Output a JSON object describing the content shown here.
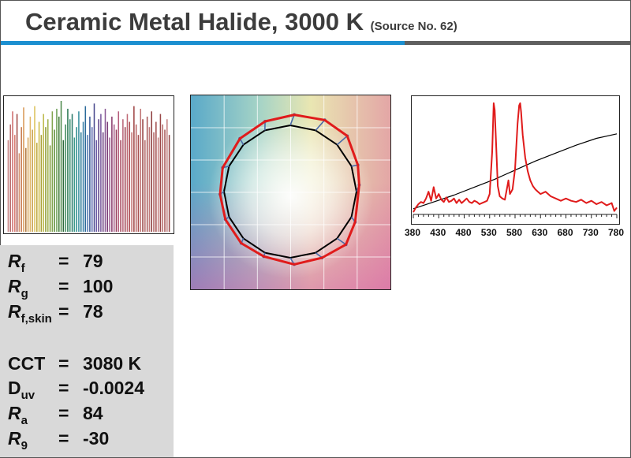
{
  "header": {
    "title": "Ceramic Metal Halide, 3000 K",
    "source_note": "(Source No. 62)",
    "accent_color": "#1b8fd0",
    "rule_dark_color": "#5f5f5f"
  },
  "metrics": [
    {
      "symbol": "R",
      "subscript": "f",
      "italic": true,
      "equals": "=",
      "value": "79"
    },
    {
      "symbol": "R",
      "subscript": "g",
      "italic": true,
      "equals": "=",
      "value": "100"
    },
    {
      "symbol": "R",
      "subscript": "f,skin",
      "italic": true,
      "equals": "=",
      "value": "78"
    },
    {
      "symbol": "CCT",
      "subscript": "",
      "italic": false,
      "equals": "=",
      "value": "3080 K"
    },
    {
      "symbol": "D",
      "subscript": "uv",
      "italic": false,
      "equals": "=",
      "value": "-0.0024"
    },
    {
      "symbol": "R",
      "subscript": "a",
      "italic": true,
      "equals": "=",
      "value": "84"
    },
    {
      "symbol": "R",
      "subscript": "9",
      "italic": true,
      "equals": "=",
      "value": "-30"
    }
  ],
  "chart_data": [
    {
      "type": "bar",
      "ylim": [
        0,
        100
      ],
      "values": [
        70,
        82,
        92,
        74,
        90,
        60,
        80,
        95,
        64,
        72,
        88,
        78,
        96,
        68,
        84,
        74,
        90,
        80,
        86,
        66,
        92,
        78,
        94,
        88,
        100,
        70,
        82,
        94,
        86,
        90,
        72,
        80,
        92,
        76,
        84,
        96,
        74,
        88,
        80,
        98,
        70,
        86,
        90,
        76,
        94,
        84,
        72,
        88,
        82,
        78,
        92,
        70,
        86,
        80,
        90,
        84,
        76,
        96,
        82,
        74,
        94,
        86,
        70,
        88,
        80,
        92,
        76,
        84,
        72,
        90,
        82,
        78,
        86,
        74
      ],
      "colors": [
        "#c98787",
        "#b86a6a",
        "#cf6e6e",
        "#d97b6f",
        "#a14b46",
        "#d4906d",
        "#c87a4e",
        "#d99a5a",
        "#b27a42",
        "#d8a85e",
        "#e2b86a",
        "#c9a04c",
        "#dcc35e",
        "#bfa83e",
        "#cdbb45",
        "#a9a23a",
        "#bcb846",
        "#8d9a36",
        "#9fb04a",
        "#7f9a3c",
        "#84a650",
        "#5f8e3a",
        "#6fa058",
        "#3f7a34",
        "#4e8a4c",
        "#2f6a3c",
        "#3f8a5c",
        "#2e7a56",
        "#3a9070",
        "#2a7a6a",
        "#3a9a8a",
        "#2a8a8a",
        "#3a90a0",
        "#2a7a96",
        "#3a80a8",
        "#2a6a9a",
        "#4a74ae",
        "#3a5a96",
        "#5a6aae",
        "#4a4a8e",
        "#6a5aa6",
        "#5a3e86",
        "#7a5a9e",
        "#6a3e7e",
        "#8a5a96",
        "#7a3a76",
        "#9a5a8e",
        "#8a3e6e",
        "#a85a86",
        "#96405e",
        "#b45a7a",
        "#a44a5e",
        "#b86478",
        "#9a3e4e",
        "#c06a76",
        "#a84a52",
        "#c27070",
        "#9e4444",
        "#b86262",
        "#a85050",
        "#c07474",
        "#984444",
        "#b46a6a",
        "#a85a5a",
        "#bf7b7b",
        "#8e3e3e",
        "#b06464",
        "#a04c4c",
        "#c47e7e",
        "#9a4848",
        "#b86c6c",
        "#a65656",
        "#c28080",
        "#944646"
      ]
    },
    {
      "type": "line",
      "xlim": [
        -1.5,
        1.5
      ],
      "ylim": [
        -1.5,
        1.5
      ],
      "series": [
        {
          "color": "#000000",
          "x": [
            1.0,
            0.924,
            0.707,
            0.383,
            0.0,
            -0.383,
            -0.707,
            -0.924,
            -1.0,
            -0.924,
            -0.707,
            -0.383,
            0.0,
            0.383,
            0.707,
            0.924,
            1.0
          ],
          "y": [
            0.0,
            0.383,
            0.707,
            0.924,
            1.0,
            0.924,
            0.707,
            0.383,
            0.0,
            -0.383,
            -0.707,
            -0.924,
            -1.0,
            -0.924,
            -0.707,
            -0.383,
            0.0
          ]
        },
        {
          "color": "#e01b1b",
          "x": [
            1.04,
            1.02,
            0.86,
            0.52,
            0.06,
            -0.38,
            -0.76,
            -1.02,
            -1.06,
            -0.98,
            -0.74,
            -0.4,
            0.06,
            0.48,
            0.84,
            0.98,
            1.04
          ],
          "y": [
            0.1,
            0.4,
            0.84,
            1.08,
            1.16,
            1.06,
            0.8,
            0.36,
            -0.04,
            -0.42,
            -0.78,
            -0.98,
            -1.1,
            -1.0,
            -0.8,
            -0.46,
            0.1
          ]
        }
      ]
    },
    {
      "type": "line",
      "x_ticks": [
        380,
        430,
        480,
        530,
        580,
        630,
        680,
        730,
        780
      ],
      "xlim": [
        380,
        780
      ],
      "ylim": [
        0,
        1
      ],
      "series": [
        {
          "color": "#e01b1b",
          "x": [
            380,
            385,
            390,
            395,
            400,
            405,
            410,
            415,
            420,
            425,
            430,
            435,
            440,
            445,
            450,
            455,
            460,
            465,
            470,
            475,
            480,
            485,
            490,
            495,
            500,
            505,
            510,
            515,
            520,
            525,
            530,
            535,
            538,
            540,
            543,
            546,
            550,
            555,
            560,
            565,
            567,
            570,
            575,
            580,
            585,
            588,
            590,
            592,
            595,
            600,
            605,
            610,
            615,
            620,
            625,
            630,
            640,
            650,
            660,
            670,
            680,
            690,
            700,
            710,
            720,
            730,
            740,
            750,
            760,
            770,
            775,
            780
          ],
          "y": [
            0.02,
            0.06,
            0.09,
            0.11,
            0.1,
            0.14,
            0.2,
            0.12,
            0.24,
            0.14,
            0.18,
            0.13,
            0.11,
            0.15,
            0.11,
            0.12,
            0.14,
            0.1,
            0.13,
            0.1,
            0.12,
            0.14,
            0.11,
            0.1,
            0.12,
            0.11,
            0.09,
            0.1,
            0.11,
            0.12,
            0.18,
            0.55,
            0.98,
            0.92,
            0.6,
            0.25,
            0.16,
            0.14,
            0.13,
            0.25,
            0.3,
            0.18,
            0.22,
            0.4,
            0.8,
            0.96,
            0.98,
            0.9,
            0.7,
            0.5,
            0.38,
            0.3,
            0.25,
            0.22,
            0.2,
            0.18,
            0.2,
            0.16,
            0.14,
            0.12,
            0.14,
            0.12,
            0.11,
            0.13,
            0.1,
            0.12,
            0.09,
            0.11,
            0.08,
            0.1,
            0.03,
            0.06
          ]
        },
        {
          "color": "#000000",
          "x": [
            380,
            420,
            460,
            500,
            540,
            580,
            620,
            660,
            700,
            740,
            780
          ],
          "y": [
            0.05,
            0.11,
            0.17,
            0.24,
            0.31,
            0.39,
            0.47,
            0.54,
            0.61,
            0.67,
            0.71
          ]
        }
      ]
    }
  ]
}
